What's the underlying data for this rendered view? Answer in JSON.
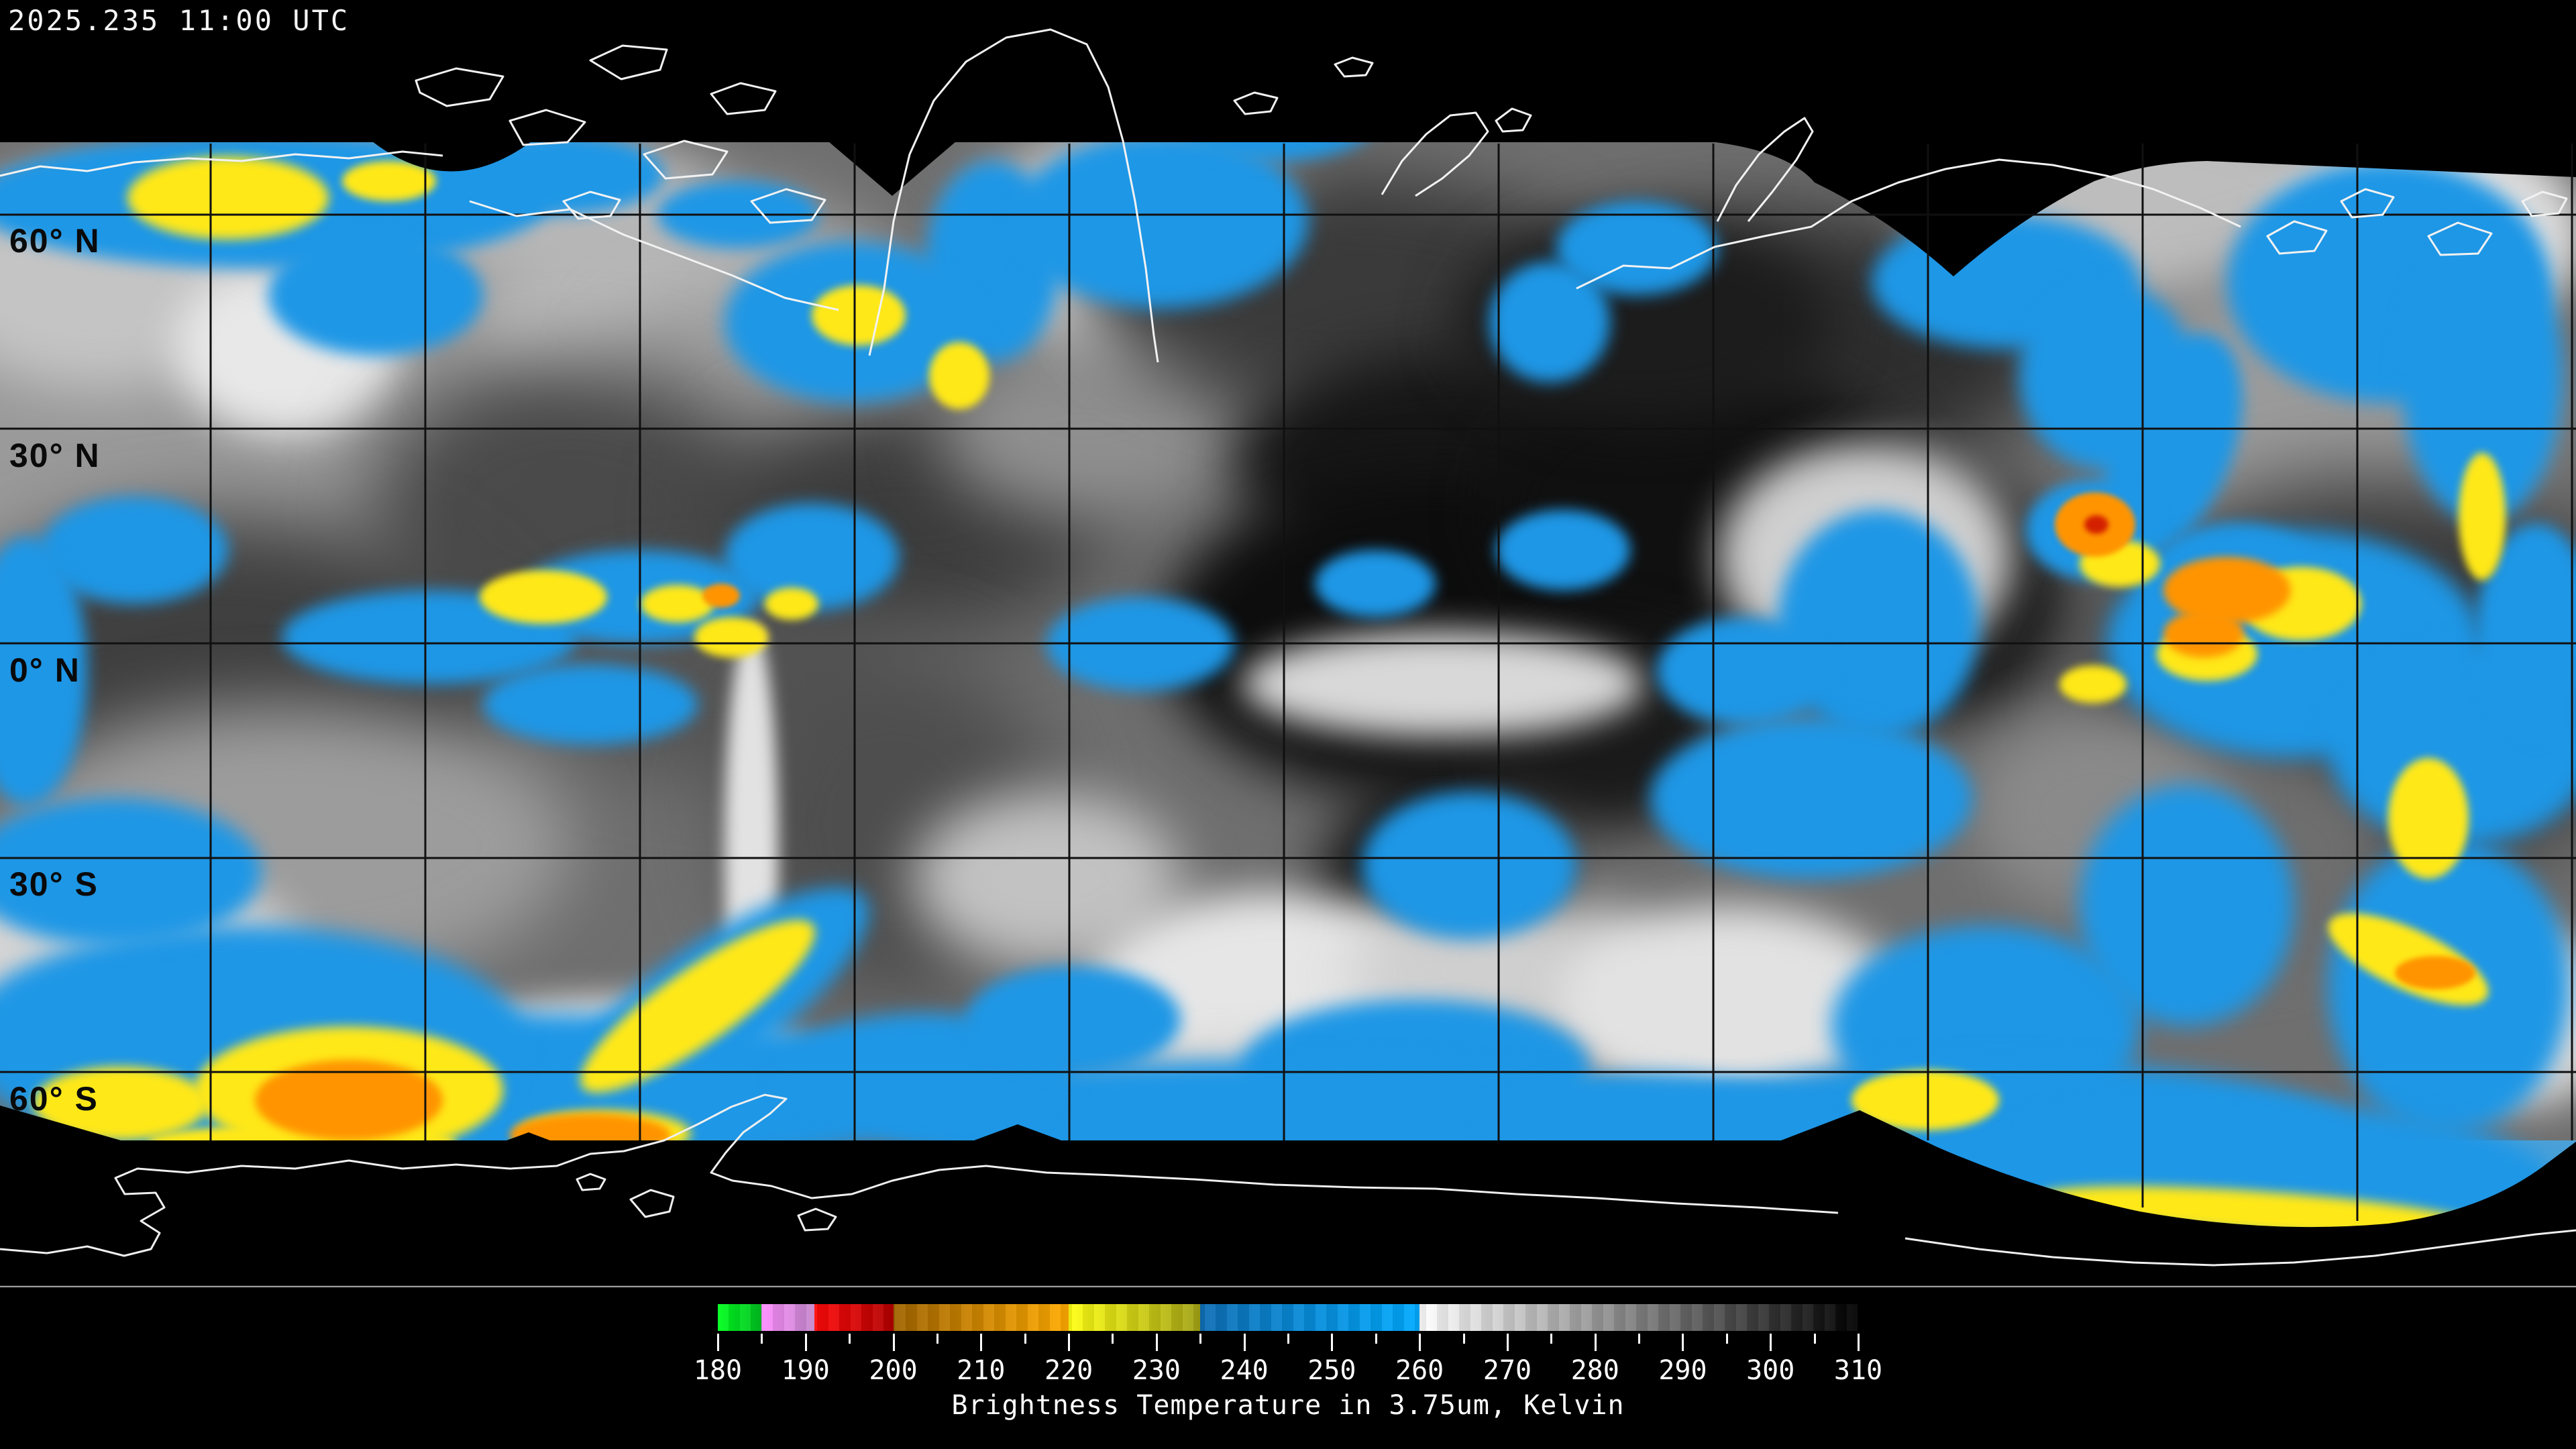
{
  "header": {
    "timestamp": "2025.235 11:00 UTC"
  },
  "map": {
    "latitude_labels": [
      {
        "text": "60° N",
        "lat": 60
      },
      {
        "text": "30° N",
        "lat": 30
      },
      {
        "text": "0° N",
        "lat": 0
      },
      {
        "text": "30° S",
        "lat": -30
      },
      {
        "text": "60° S",
        "lat": -60
      }
    ]
  },
  "colorbar": {
    "caption": "Brightness Temperature in 3.75um, Kelvin",
    "unit": "Kelvin",
    "min": 180,
    "max": 310,
    "major_ticks": [
      180,
      190,
      200,
      210,
      220,
      230,
      240,
      250,
      260,
      270,
      280,
      290,
      300,
      310
    ],
    "minor_tick_step": 5,
    "segments": [
      {
        "from": 180,
        "to": 185,
        "start_color": "#00ff1e",
        "end_color": "#00c020"
      },
      {
        "from": 185,
        "to": 191,
        "start_color": "#ff8cff",
        "end_color": "#c488cc"
      },
      {
        "from": 191,
        "to": 200,
        "start_color": "#ff0a0a",
        "end_color": "#b20000"
      },
      {
        "from": 200,
        "to": 220,
        "start_color": "#a06400",
        "end_color": "#ffaa00"
      },
      {
        "from": 220,
        "to": 235,
        "start_color": "#ffff14",
        "end_color": "#a2a216"
      },
      {
        "from": 235,
        "to": 260,
        "start_color": "#0e6eb4",
        "end_color": "#00aaff"
      },
      {
        "from": 260,
        "to": 310,
        "start_color": "#ffffff",
        "end_color": "#000000"
      }
    ]
  }
}
